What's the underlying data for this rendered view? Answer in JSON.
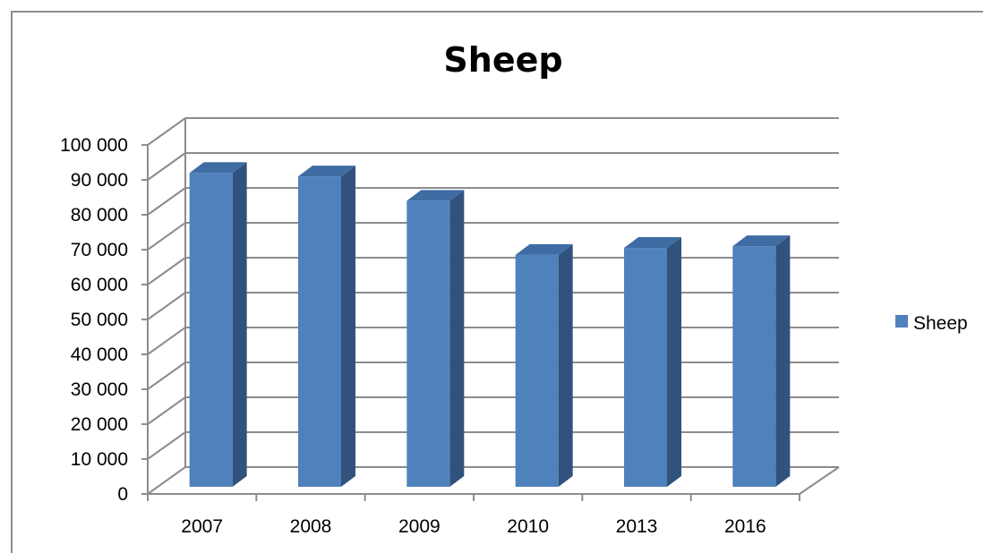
{
  "chart_data": {
    "type": "bar",
    "title": "Sheep",
    "categories": [
      "2007",
      "2008",
      "2009",
      "2010",
      "2013",
      "2016"
    ],
    "series": [
      {
        "name": "Sheep",
        "values": [
          92000,
          91000,
          84000,
          68500,
          70500,
          71000
        ]
      }
    ],
    "ylim": [
      0,
      100000
    ],
    "yticks": [
      "0",
      "10 000",
      "20 000",
      "30 000",
      "40 000",
      "50 000",
      "60 000",
      "70 000",
      "80 000",
      "90 000",
      "100 000"
    ],
    "grid": true,
    "legend_position": "right",
    "colors": {
      "bar_front": "#4f81bd",
      "bar_side": "#31527c",
      "bar_top": "#3f6ca3",
      "grid": "#8c8c8c"
    }
  }
}
